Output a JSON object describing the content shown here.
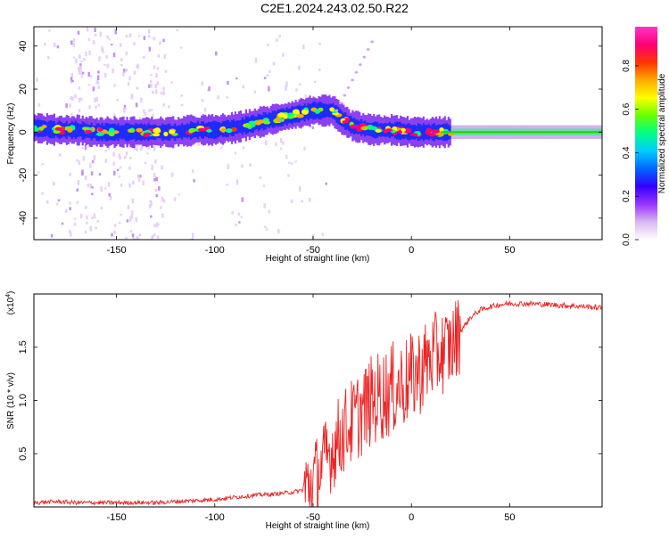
{
  "title": "C2E1.2024.243.02.50.R22",
  "chart_data": [
    {
      "type": "heatmap",
      "xlabel": "Height of straight line (km)",
      "ylabel": "Frequency (Hz)",
      "xlim": [
        -192,
        97
      ],
      "ylim": [
        -50,
        49
      ],
      "xticks": [
        -150,
        -100,
        -50,
        0,
        50
      ],
      "xtick_labels": [
        "-150",
        "-100",
        "-50",
        "0",
        "50"
      ],
      "yticks": [
        -40,
        -20,
        0,
        20,
        40
      ],
      "ytick_labels": [
        "-40",
        "-20",
        "0",
        "20",
        "40"
      ],
      "colorbar": {
        "label": "Normalized spectral amplitude",
        "range": [
          0,
          0.98
        ],
        "ticks": [
          0.0,
          0.2,
          0.4,
          0.6,
          0.8
        ],
        "tick_labels": [
          "0.0",
          "0.2",
          "0.4",
          "0.6",
          "0.8"
        ],
        "colors": [
          "#ffffff",
          "#d8b8f0",
          "#9933ff",
          "#3300ff",
          "#0066ff",
          "#00ccff",
          "#00ff88",
          "#66ff00",
          "#ffff00",
          "#ffaa00",
          "#ff3300",
          "#ff0077",
          "#ff33cc"
        ]
      },
      "ridge": {
        "x": [
          -192,
          -180,
          -170,
          -160,
          -150,
          -140,
          -130,
          -120,
          -110,
          -100,
          -90,
          -80,
          -70,
          -60,
          -50,
          -45,
          -40,
          -35,
          -30,
          -25,
          -20,
          -10,
          0,
          10,
          20,
          30,
          40,
          50,
          60,
          70,
          80,
          90,
          97
        ],
        "freq_hz": [
          2,
          1,
          1,
          0,
          0,
          0,
          0,
          0,
          1,
          1,
          2,
          4,
          6,
          8,
          10,
          10,
          10,
          6,
          3,
          2,
          1,
          1,
          0,
          0,
          0,
          0,
          0,
          0,
          0,
          0,
          0,
          0,
          0
        ]
      },
      "secondary_line": {
        "x": [
          -38,
          -20
        ],
        "freq_hz": [
          10,
          42
        ]
      },
      "grid": false
    },
    {
      "type": "line",
      "xlabel": "Height of straight line (km)",
      "ylabel": "SNR (10 * v/v)",
      "y_multiplier_label": "(x10",
      "y_multiplier_exp": "4",
      "y_multiplier_close": ")",
      "xlim": [
        -192,
        97
      ],
      "ylim": [
        0,
        2.0
      ],
      "xticks": [
        -150,
        -100,
        -50,
        0,
        50
      ],
      "xtick_labels": [
        "-150",
        "-100",
        "-50",
        "0",
        "50"
      ],
      "yticks": [
        0.5,
        1.0,
        1.5
      ],
      "ytick_labels": [
        "0.5",
        "1.0",
        "1.5"
      ],
      "series": [
        {
          "color": "#ee2222",
          "x": [
            -192,
            -180,
            -170,
            -160,
            -150,
            -140,
            -130,
            -120,
            -110,
            -100,
            -90,
            -80,
            -70,
            -60,
            -55,
            -50,
            -45,
            -40,
            -35,
            -30,
            -25,
            -20,
            -15,
            -10,
            -5,
            0,
            5,
            10,
            15,
            20,
            25,
            30,
            35,
            40,
            45,
            50,
            60,
            70,
            80,
            90,
            97
          ],
          "y": [
            0.04,
            0.05,
            0.04,
            0.04,
            0.04,
            0.04,
            0.04,
            0.05,
            0.06,
            0.07,
            0.09,
            0.11,
            0.12,
            0.14,
            0.16,
            0.25,
            0.4,
            0.55,
            0.7,
            0.8,
            0.9,
            1.0,
            1.05,
            1.1,
            1.15,
            1.2,
            1.3,
            1.4,
            1.45,
            1.5,
            1.65,
            1.78,
            1.85,
            1.88,
            1.9,
            1.91,
            1.91,
            1.9,
            1.89,
            1.88,
            1.87
          ]
        }
      ],
      "grid": false
    }
  ]
}
